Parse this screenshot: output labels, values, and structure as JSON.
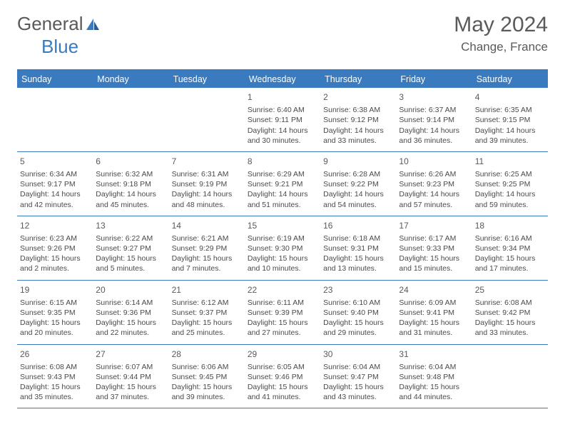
{
  "brand": {
    "part1": "General",
    "part2": "Blue"
  },
  "title": "May 2024",
  "location": "Change, France",
  "colors": {
    "accent": "#3a7bbf",
    "text": "#4a4a4a",
    "header_text": "#ffffff",
    "background": "#ffffff"
  },
  "calendar": {
    "type": "table",
    "day_names": [
      "Sunday",
      "Monday",
      "Tuesday",
      "Wednesday",
      "Thursday",
      "Friday",
      "Saturday"
    ],
    "header_bg": "#3a7bbf",
    "header_fontsize": 12.5,
    "cell_fontsize": 10.5,
    "daynum_fontsize": 12,
    "row_border_color": "#3a7bbf",
    "weeks": [
      [
        null,
        null,
        null,
        {
          "n": "1",
          "sunrise": "6:40 AM",
          "sunset": "9:11 PM",
          "daylight": "14 hours and 30 minutes."
        },
        {
          "n": "2",
          "sunrise": "6:38 AM",
          "sunset": "9:12 PM",
          "daylight": "14 hours and 33 minutes."
        },
        {
          "n": "3",
          "sunrise": "6:37 AM",
          "sunset": "9:14 PM",
          "daylight": "14 hours and 36 minutes."
        },
        {
          "n": "4",
          "sunrise": "6:35 AM",
          "sunset": "9:15 PM",
          "daylight": "14 hours and 39 minutes."
        }
      ],
      [
        {
          "n": "5",
          "sunrise": "6:34 AM",
          "sunset": "9:17 PM",
          "daylight": "14 hours and 42 minutes."
        },
        {
          "n": "6",
          "sunrise": "6:32 AM",
          "sunset": "9:18 PM",
          "daylight": "14 hours and 45 minutes."
        },
        {
          "n": "7",
          "sunrise": "6:31 AM",
          "sunset": "9:19 PM",
          "daylight": "14 hours and 48 minutes."
        },
        {
          "n": "8",
          "sunrise": "6:29 AM",
          "sunset": "9:21 PM",
          "daylight": "14 hours and 51 minutes."
        },
        {
          "n": "9",
          "sunrise": "6:28 AM",
          "sunset": "9:22 PM",
          "daylight": "14 hours and 54 minutes."
        },
        {
          "n": "10",
          "sunrise": "6:26 AM",
          "sunset": "9:23 PM",
          "daylight": "14 hours and 57 minutes."
        },
        {
          "n": "11",
          "sunrise": "6:25 AM",
          "sunset": "9:25 PM",
          "daylight": "14 hours and 59 minutes."
        }
      ],
      [
        {
          "n": "12",
          "sunrise": "6:23 AM",
          "sunset": "9:26 PM",
          "daylight": "15 hours and 2 minutes."
        },
        {
          "n": "13",
          "sunrise": "6:22 AM",
          "sunset": "9:27 PM",
          "daylight": "15 hours and 5 minutes."
        },
        {
          "n": "14",
          "sunrise": "6:21 AM",
          "sunset": "9:29 PM",
          "daylight": "15 hours and 7 minutes."
        },
        {
          "n": "15",
          "sunrise": "6:19 AM",
          "sunset": "9:30 PM",
          "daylight": "15 hours and 10 minutes."
        },
        {
          "n": "16",
          "sunrise": "6:18 AM",
          "sunset": "9:31 PM",
          "daylight": "15 hours and 13 minutes."
        },
        {
          "n": "17",
          "sunrise": "6:17 AM",
          "sunset": "9:33 PM",
          "daylight": "15 hours and 15 minutes."
        },
        {
          "n": "18",
          "sunrise": "6:16 AM",
          "sunset": "9:34 PM",
          "daylight": "15 hours and 17 minutes."
        }
      ],
      [
        {
          "n": "19",
          "sunrise": "6:15 AM",
          "sunset": "9:35 PM",
          "daylight": "15 hours and 20 minutes."
        },
        {
          "n": "20",
          "sunrise": "6:14 AM",
          "sunset": "9:36 PM",
          "daylight": "15 hours and 22 minutes."
        },
        {
          "n": "21",
          "sunrise": "6:12 AM",
          "sunset": "9:37 PM",
          "daylight": "15 hours and 25 minutes."
        },
        {
          "n": "22",
          "sunrise": "6:11 AM",
          "sunset": "9:39 PM",
          "daylight": "15 hours and 27 minutes."
        },
        {
          "n": "23",
          "sunrise": "6:10 AM",
          "sunset": "9:40 PM",
          "daylight": "15 hours and 29 minutes."
        },
        {
          "n": "24",
          "sunrise": "6:09 AM",
          "sunset": "9:41 PM",
          "daylight": "15 hours and 31 minutes."
        },
        {
          "n": "25",
          "sunrise": "6:08 AM",
          "sunset": "9:42 PM",
          "daylight": "15 hours and 33 minutes."
        }
      ],
      [
        {
          "n": "26",
          "sunrise": "6:08 AM",
          "sunset": "9:43 PM",
          "daylight": "15 hours and 35 minutes."
        },
        {
          "n": "27",
          "sunrise": "6:07 AM",
          "sunset": "9:44 PM",
          "daylight": "15 hours and 37 minutes."
        },
        {
          "n": "28",
          "sunrise": "6:06 AM",
          "sunset": "9:45 PM",
          "daylight": "15 hours and 39 minutes."
        },
        {
          "n": "29",
          "sunrise": "6:05 AM",
          "sunset": "9:46 PM",
          "daylight": "15 hours and 41 minutes."
        },
        {
          "n": "30",
          "sunrise": "6:04 AM",
          "sunset": "9:47 PM",
          "daylight": "15 hours and 43 minutes."
        },
        {
          "n": "31",
          "sunrise": "6:04 AM",
          "sunset": "9:48 PM",
          "daylight": "15 hours and 44 minutes."
        },
        null
      ]
    ],
    "labels": {
      "sunrise": "Sunrise:",
      "sunset": "Sunset:",
      "daylight": "Daylight:"
    }
  }
}
